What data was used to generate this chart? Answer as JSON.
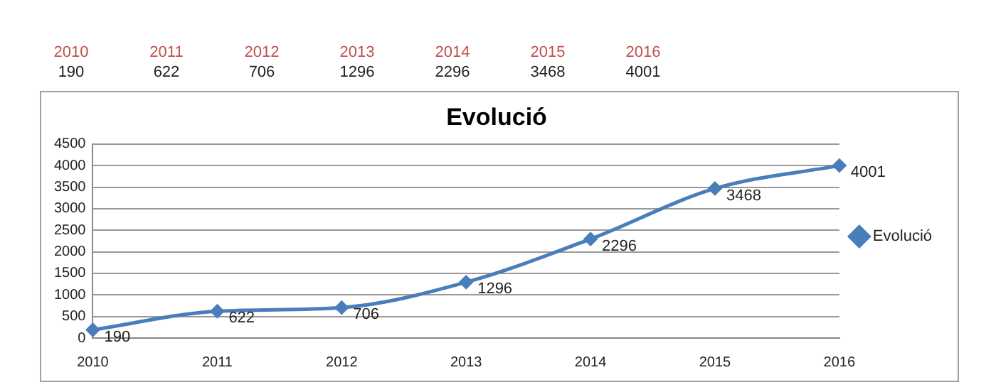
{
  "chart_data": {
    "type": "line",
    "title": "Evolució",
    "categories": [
      "2010",
      "2011",
      "2012",
      "2013",
      "2014",
      "2015",
      "2016"
    ],
    "series": [
      {
        "name": "Evolució",
        "color": "#4a7ebb",
        "values": [
          190,
          622,
          706,
          1296,
          2296,
          3468,
          4001
        ]
      }
    ],
    "ylim": [
      0,
      4500
    ],
    "yticks": [
      0,
      500,
      1000,
      1500,
      2000,
      2500,
      3000,
      3500,
      4000,
      4500
    ],
    "annotations": [
      "190",
      "622",
      "706",
      "1296",
      "2296",
      "3468",
      "4001"
    ],
    "grid": "y",
    "legend": "right",
    "marker": "diamond",
    "line_style": "solid",
    "data_labels": true
  }
}
